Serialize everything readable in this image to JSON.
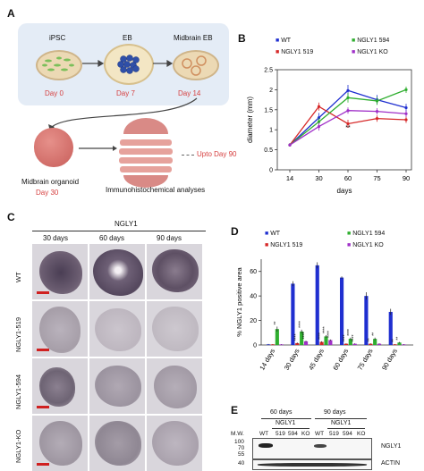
{
  "panels": {
    "A": {
      "letter": "A",
      "stages": [
        {
          "name": "iPSC",
          "day": "Day 0"
        },
        {
          "name": "EB",
          "day": "Day 7"
        },
        {
          "name": "Midbrain EB",
          "day": "Day 14"
        }
      ],
      "organoid_name": "Midbrain organoid",
      "organoid_day": "Day 30",
      "analysis_label": "Immunohistochemical analyses",
      "upto_label": "Upto Day 90"
    },
    "B": {
      "letter": "B",
      "legend": [
        "WT",
        "NGLY1 519",
        "NGLY1 594",
        "NGLY1 KO"
      ]
    },
    "C": {
      "letter": "C",
      "title": "NGLY1",
      "columns": [
        "30 days",
        "60 days",
        "90 days"
      ],
      "rows": [
        "WT",
        "NGLY1-519",
        "NGLY1-594",
        "NGLY1-KO"
      ]
    },
    "D": {
      "letter": "D",
      "legend": [
        "WT",
        "NGLY1 519",
        "NGLY1 594",
        "NGLY1 KO"
      ]
    },
    "E": {
      "letter": "E",
      "mw_label": "M.W.",
      "group1": "60 days",
      "group2": "90 days",
      "sub1": "NGLY1",
      "sub2": "NGLY1",
      "lanes": [
        "WT",
        "519",
        "594",
        "KO",
        "WT",
        "519",
        "594",
        "KO"
      ],
      "markers": [
        "100",
        "70",
        "55",
        "40"
      ],
      "band1": "NGLY1",
      "band2": "ACTIN"
    }
  },
  "colors": {
    "WT": "#1f2fd0",
    "NGLY1 519": "#d62828",
    "NGLY1 594": "#2fae2f",
    "NGLY1 KO": "#a030c8"
  },
  "chart_data": [
    {
      "type": "line",
      "panel": "B",
      "x": [
        14,
        30,
        60,
        75,
        90
      ],
      "xlabel": "days",
      "ylabel": "diameter (mm)",
      "ylim": [
        0,
        2.5
      ],
      "yticks": [
        0,
        0.5,
        1,
        1.5,
        2,
        2.5
      ],
      "xticks": [
        "14",
        "30",
        "60",
        "75",
        "90"
      ],
      "annotations": [
        {
          "x": 60,
          "text": "**"
        }
      ],
      "series": [
        {
          "name": "WT",
          "values": [
            0.62,
            1.3,
            1.98,
            1.75,
            1.55
          ],
          "errors": [
            0.04,
            0.12,
            0.14,
            0.12,
            0.1
          ]
        },
        {
          "name": "NGLY1 519",
          "values": [
            0.62,
            1.58,
            1.15,
            1.28,
            1.25
          ],
          "errors": [
            0.04,
            0.1,
            0.1,
            0.08,
            0.08
          ]
        },
        {
          "name": "NGLY1 594",
          "values": [
            0.62,
            1.2,
            1.8,
            1.72,
            2.0
          ],
          "errors": [
            0.04,
            0.1,
            0.12,
            0.1,
            0.08
          ]
        },
        {
          "name": "NGLY1 KO",
          "values": [
            0.62,
            1.08,
            1.48,
            1.46,
            1.4
          ],
          "errors": [
            0.04,
            0.1,
            0.08,
            0.08,
            0.08
          ]
        }
      ]
    },
    {
      "type": "bar",
      "panel": "D",
      "categories": [
        "14 days",
        "30 days",
        "45 days",
        "60 days",
        "75 days",
        "90 days"
      ],
      "ylabel": "% NGLY1 positive area",
      "ylim": [
        0,
        70
      ],
      "yticks": [
        0,
        20,
        40,
        60
      ],
      "series": [
        {
          "name": "WT",
          "values": [
            0.5,
            50,
            65,
            55,
            40,
            27
          ],
          "errors": [
            0.3,
            2,
            2.5,
            1,
            3,
            2.5
          ]
        },
        {
          "name": "NGLY1 519",
          "values": [
            0.5,
            1.5,
            2.5,
            1,
            1,
            0.5
          ],
          "errors": [
            0.2,
            0.5,
            0.5,
            0.3,
            0.3,
            0.2
          ]
        },
        {
          "name": "NGLY1 594",
          "values": [
            13,
            11,
            7,
            5,
            5,
            2
          ],
          "errors": [
            2,
            1.5,
            1,
            1,
            1,
            0.5
          ]
        },
        {
          "name": "NGLY1 KO",
          "values": [
            0.5,
            3,
            4,
            1,
            1,
            0.5
          ],
          "errors": [
            0.2,
            0.5,
            0.5,
            0.3,
            0.3,
            0.2
          ]
        }
      ],
      "annotations": [
        {
          "category": "14 days",
          "series": "NGLY1 594",
          "text": "**"
        },
        {
          "category": "30 days",
          "series": "NGLY1 519",
          "text": "****"
        },
        {
          "category": "30 days",
          "series": "NGLY1 594",
          "text": "****"
        },
        {
          "category": "30 days",
          "series": "NGLY1 KO",
          "text": "****"
        },
        {
          "category": "45 days",
          "series": "NGLY1 519",
          "text": "****"
        },
        {
          "category": "45 days",
          "series": "NGLY1 594",
          "text": "****"
        },
        {
          "category": "45 days",
          "series": "NGLY1 KO",
          "text": "****"
        },
        {
          "category": "60 days",
          "series": "NGLY1 519",
          "text": "****"
        },
        {
          "category": "60 days",
          "series": "NGLY1 594",
          "text": "****"
        },
        {
          "category": "60 days",
          "series": "NGLY1 KO",
          "text": "****"
        },
        {
          "category": "75 days",
          "series": "NGLY1 519",
          "text": "**"
        },
        {
          "category": "75 days",
          "series": "NGLY1 594",
          "text": "**"
        },
        {
          "category": "90 days",
          "series": "NGLY1 519",
          "text": "**"
        },
        {
          "category": "90 days",
          "series": "NGLY1 594",
          "text": "**"
        }
      ]
    }
  ]
}
